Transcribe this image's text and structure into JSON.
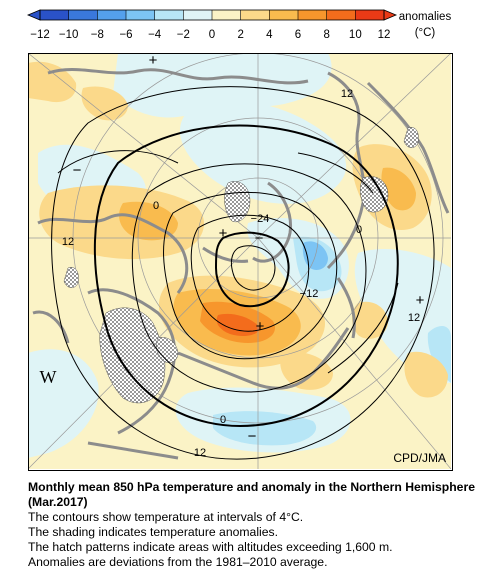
{
  "legend": {
    "title": "anomalies",
    "unit": "(°C)",
    "ticks": [
      "−12",
      "−10",
      "−8",
      "−6",
      "−4",
      "−2",
      "0",
      "2",
      "4",
      "6",
      "8",
      "10",
      "12"
    ],
    "colors": [
      "#2a52c8",
      "#3a78dc",
      "#54a0ec",
      "#7cc4f4",
      "#b7e6f6",
      "#dff4f6",
      "#fbf3c6",
      "#fbd98a",
      "#f9bb4e",
      "#f7962c",
      "#f36c1c",
      "#ea3a16"
    ]
  },
  "map": {
    "contour_labels": [
      "12",
      "−24",
      "0",
      "0",
      "−12",
      "12",
      "12",
      "0",
      "12"
    ],
    "sign_markers": [
      "+",
      "−",
      "+",
      "−",
      "+",
      "−"
    ],
    "west_label": "W",
    "credit": "CPD/JMA"
  },
  "caption": {
    "title": "Monthly mean 850 hPa temperature and anomaly in the Northern Hemisphere (Mar.2017)",
    "lines": [
      "The contours show temperature at intervals of 4°C.",
      "The shading indicates temperature anomalies.",
      "The hatch patterns indicate areas with altitudes exceeding 1,600 m.",
      "Anomalies are deviations from the 1981–2010 average."
    ]
  }
}
